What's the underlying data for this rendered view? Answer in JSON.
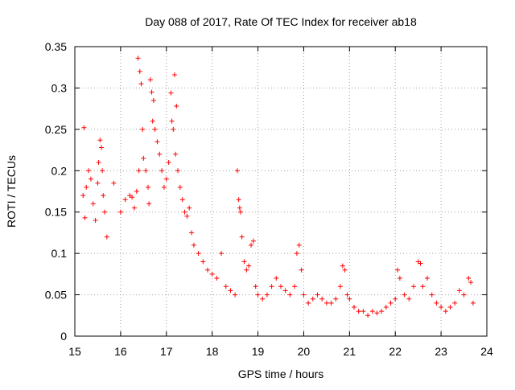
{
  "chart_data": {
    "type": "scatter",
    "title": "Day 088 of 2017, Rate Of TEC Index for receiver ab18",
    "xlabel": "GPS time / hours",
    "ylabel": "ROTI / TECUs",
    "xlim": [
      15,
      24
    ],
    "ylim": [
      0,
      0.35
    ],
    "x_ticks": [
      15,
      16,
      17,
      18,
      19,
      20,
      21,
      22,
      23,
      24
    ],
    "x_tick_labels": [
      "15",
      "16",
      "17",
      "18",
      "19",
      "20",
      "21",
      "22",
      "23",
      "24"
    ],
    "y_ticks": [
      0,
      0.05,
      0.1,
      0.15,
      0.2,
      0.25,
      0.3,
      0.35
    ],
    "y_tick_labels": [
      "0",
      "0.05",
      "0.1",
      "0.15",
      "0.2",
      "0.25",
      "0.3",
      "0.35"
    ],
    "grid": true,
    "marker": "+",
    "color": "#ff0000",
    "series": [
      {
        "name": "ROTI",
        "points": [
          [
            15.2,
            0.252
          ],
          [
            15.18,
            0.17
          ],
          [
            15.22,
            0.143
          ],
          [
            15.25,
            0.18
          ],
          [
            15.3,
            0.2
          ],
          [
            15.35,
            0.19
          ],
          [
            15.4,
            0.16
          ],
          [
            15.45,
            0.14
          ],
          [
            15.5,
            0.185
          ],
          [
            15.52,
            0.21
          ],
          [
            15.55,
            0.237
          ],
          [
            15.58,
            0.228
          ],
          [
            15.6,
            0.2
          ],
          [
            15.62,
            0.17
          ],
          [
            15.65,
            0.15
          ],
          [
            15.7,
            0.12
          ],
          [
            15.85,
            0.185
          ],
          [
            16.0,
            0.15
          ],
          [
            16.1,
            0.165
          ],
          [
            16.2,
            0.17
          ],
          [
            16.25,
            0.168
          ],
          [
            16.3,
            0.155
          ],
          [
            16.35,
            0.175
          ],
          [
            16.38,
            0.336
          ],
          [
            16.4,
            0.2
          ],
          [
            16.42,
            0.32
          ],
          [
            16.45,
            0.305
          ],
          [
            16.48,
            0.25
          ],
          [
            16.5,
            0.215
          ],
          [
            16.55,
            0.2
          ],
          [
            16.6,
            0.18
          ],
          [
            16.62,
            0.16
          ],
          [
            16.65,
            0.31
          ],
          [
            16.68,
            0.295
          ],
          [
            16.7,
            0.26
          ],
          [
            16.72,
            0.285
          ],
          [
            16.75,
            0.25
          ],
          [
            16.8,
            0.235
          ],
          [
            16.85,
            0.22
          ],
          [
            16.9,
            0.2
          ],
          [
            16.95,
            0.18
          ],
          [
            17.0,
            0.19
          ],
          [
            17.05,
            0.21
          ],
          [
            17.1,
            0.294
          ],
          [
            17.12,
            0.26
          ],
          [
            17.15,
            0.25
          ],
          [
            17.18,
            0.316
          ],
          [
            17.2,
            0.22
          ],
          [
            17.22,
            0.278
          ],
          [
            17.25,
            0.2
          ],
          [
            17.3,
            0.18
          ],
          [
            17.35,
            0.165
          ],
          [
            17.4,
            0.15
          ],
          [
            17.45,
            0.145
          ],
          [
            17.5,
            0.155
          ],
          [
            17.55,
            0.125
          ],
          [
            17.6,
            0.11
          ],
          [
            17.7,
            0.1
          ],
          [
            17.8,
            0.09
          ],
          [
            17.9,
            0.08
          ],
          [
            18.0,
            0.075
          ],
          [
            18.1,
            0.07
          ],
          [
            18.2,
            0.1
          ],
          [
            18.3,
            0.06
          ],
          [
            18.4,
            0.055
          ],
          [
            18.5,
            0.05
          ],
          [
            18.55,
            0.2
          ],
          [
            18.58,
            0.165
          ],
          [
            18.6,
            0.155
          ],
          [
            18.62,
            0.15
          ],
          [
            18.65,
            0.12
          ],
          [
            18.7,
            0.09
          ],
          [
            18.75,
            0.08
          ],
          [
            18.8,
            0.085
          ],
          [
            18.85,
            0.11
          ],
          [
            18.9,
            0.115
          ],
          [
            18.95,
            0.06
          ],
          [
            19.0,
            0.05
          ],
          [
            19.1,
            0.045
          ],
          [
            19.2,
            0.05
          ],
          [
            19.3,
            0.06
          ],
          [
            19.4,
            0.07
          ],
          [
            19.5,
            0.06
          ],
          [
            19.6,
            0.055
          ],
          [
            19.7,
            0.05
          ],
          [
            19.8,
            0.06
          ],
          [
            19.85,
            0.1
          ],
          [
            19.9,
            0.11
          ],
          [
            19.95,
            0.08
          ],
          [
            20.0,
            0.05
          ],
          [
            20.1,
            0.04
          ],
          [
            20.2,
            0.045
          ],
          [
            20.3,
            0.05
          ],
          [
            20.4,
            0.045
          ],
          [
            20.5,
            0.04
          ],
          [
            20.6,
            0.04
          ],
          [
            20.7,
            0.045
          ],
          [
            20.8,
            0.06
          ],
          [
            20.85,
            0.085
          ],
          [
            20.9,
            0.08
          ],
          [
            20.95,
            0.05
          ],
          [
            21.0,
            0.045
          ],
          [
            21.1,
            0.035
          ],
          [
            21.2,
            0.03
          ],
          [
            21.3,
            0.03
          ],
          [
            21.4,
            0.025
          ],
          [
            21.5,
            0.03
          ],
          [
            21.6,
            0.028
          ],
          [
            21.7,
            0.03
          ],
          [
            21.8,
            0.035
          ],
          [
            21.9,
            0.04
          ],
          [
            22.0,
            0.045
          ],
          [
            22.05,
            0.08
          ],
          [
            22.1,
            0.07
          ],
          [
            22.2,
            0.05
          ],
          [
            22.3,
            0.045
          ],
          [
            22.4,
            0.06
          ],
          [
            22.5,
            0.09
          ],
          [
            22.55,
            0.088
          ],
          [
            22.6,
            0.06
          ],
          [
            22.7,
            0.07
          ],
          [
            22.8,
            0.05
          ],
          [
            22.9,
            0.04
          ],
          [
            23.0,
            0.035
          ],
          [
            23.1,
            0.03
          ],
          [
            23.2,
            0.035
          ],
          [
            23.3,
            0.04
          ],
          [
            23.4,
            0.055
          ],
          [
            23.5,
            0.05
          ],
          [
            23.6,
            0.07
          ],
          [
            23.65,
            0.065
          ],
          [
            23.7,
            0.04
          ]
        ]
      }
    ]
  }
}
